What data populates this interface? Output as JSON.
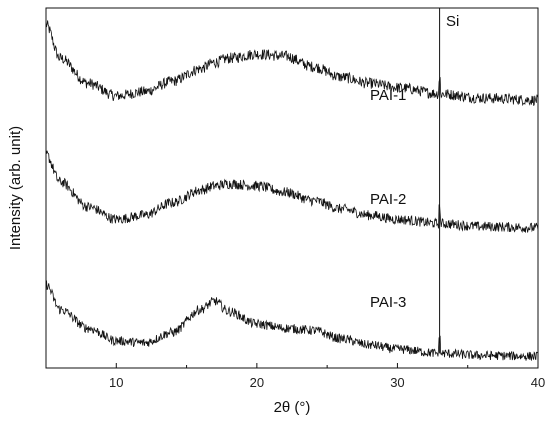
{
  "chart_data": {
    "type": "line",
    "xlabel": "2θ (°)",
    "ylabel": "Intensity (arb. unit)",
    "xlim": [
      5,
      40
    ],
    "xticks": [
      "10",
      "20",
      "30",
      "40"
    ],
    "y_ticks_shown": false,
    "grid": false,
    "legend": "none",
    "line_color": "#111111",
    "x": [
      5,
      6,
      8,
      10,
      12,
      14,
      16,
      17,
      18,
      20,
      22,
      24,
      26,
      28,
      30,
      33,
      36,
      40
    ],
    "series": [
      {
        "name": "PAI-1",
        "values": [
          8.2,
          7.4,
          6.8,
          6.5,
          6.6,
          6.85,
          7.15,
          7.3,
          7.4,
          7.5,
          7.45,
          7.2,
          6.95,
          6.8,
          6.7,
          6.55,
          6.45,
          6.4
        ]
      },
      {
        "name": "PAI-2",
        "values": [
          5.1,
          4.45,
          3.85,
          3.55,
          3.65,
          3.95,
          4.25,
          4.35,
          4.4,
          4.35,
          4.2,
          4.0,
          3.8,
          3.65,
          3.55,
          3.45,
          3.38,
          3.35
        ]
      },
      {
        "name": "PAI-3",
        "values": [
          2.0,
          1.4,
          0.95,
          0.65,
          0.6,
          0.85,
          1.4,
          1.6,
          1.35,
          1.05,
          0.95,
          0.9,
          0.7,
          0.55,
          0.45,
          0.35,
          0.3,
          0.28
        ]
      }
    ],
    "annotations": [
      {
        "text": "Si",
        "x": 33,
        "note_text": "Si"
      }
    ],
    "series_labels": [
      "PAI-1",
      "PAI-2",
      "PAI-3"
    ]
  }
}
